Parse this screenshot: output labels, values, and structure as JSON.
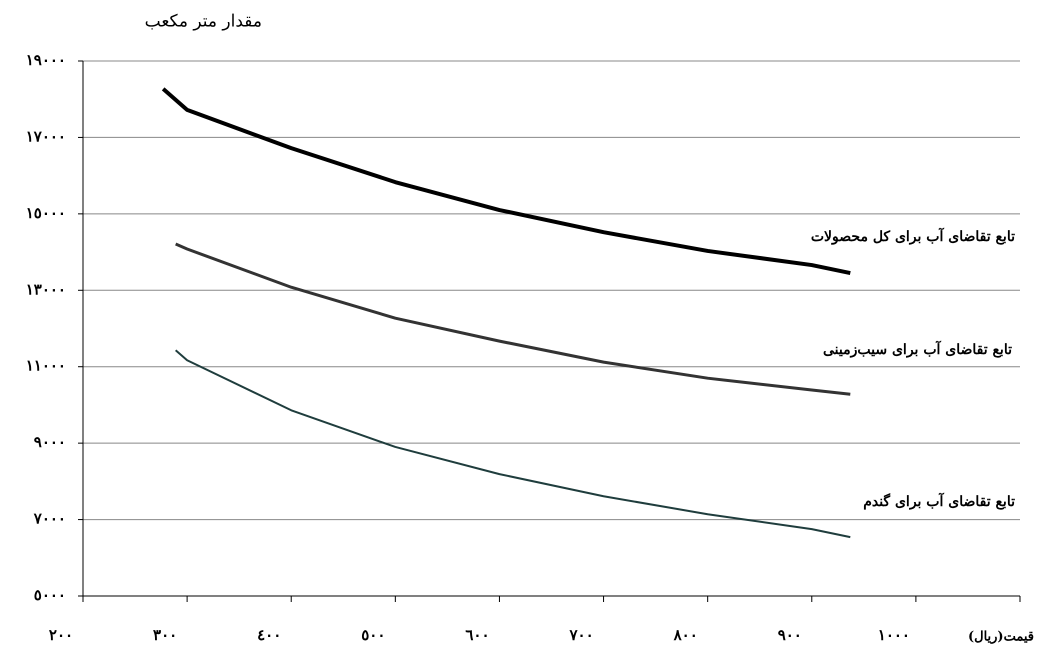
{
  "chart_data": {
    "type": "line",
    "ylabel": "مقدار متر مکعب",
    "xlabel": "قیمت(ریال)",
    "xlim": [
      200,
      1100
    ],
    "xticks": [
      {
        "value": 200,
        "label": "۲۰۰"
      },
      {
        "value": 300,
        "label": "۳۰۰"
      },
      {
        "value": 400,
        "label": "٤۰۰"
      },
      {
        "value": 500,
        "label": "٥۰۰"
      },
      {
        "value": 600,
        "label": "٦۰۰"
      },
      {
        "value": 700,
        "label": "۷۰۰"
      },
      {
        "value": 800,
        "label": "۸۰۰"
      },
      {
        "value": 900,
        "label": "۹۰۰"
      },
      {
        "value": 1000,
        "label": "۱۰۰۰"
      }
    ],
    "ylim": [
      5000,
      19000
    ],
    "yticks": [
      {
        "value": 5000,
        "label": "٥۰۰۰"
      },
      {
        "value": 7000,
        "label": "۷۰۰۰"
      },
      {
        "value": 9000,
        "label": "۹۰۰۰"
      },
      {
        "value": 11000,
        "label": "۱۱۰۰۰"
      },
      {
        "value": 13000,
        "label": "۱۳۰۰۰"
      },
      {
        "value": 15000,
        "label": "۱٥۰۰۰"
      },
      {
        "value": 17000,
        "label": "۱۷۰۰۰"
      },
      {
        "value": 19000,
        "label": "۱۹۰۰۰"
      }
    ],
    "grid": true,
    "series": [
      {
        "name": "تابع تقاضای آب برای کل محصولات",
        "color": "#000000",
        "width": 4,
        "x": [
          277,
          300,
          400,
          500,
          600,
          700,
          800,
          900,
          937
        ],
        "values": [
          18270,
          17720,
          16720,
          15830,
          15100,
          14520,
          14030,
          13660,
          13450
        ]
      },
      {
        "name": "تابع تقاضای آب برای سیب‌زمینی",
        "color": "#333333",
        "width": 3,
        "x": [
          289,
          300,
          400,
          500,
          600,
          700,
          800,
          900,
          937
        ],
        "values": [
          14210,
          14080,
          13080,
          12270,
          11670,
          11120,
          10700,
          10390,
          10280
        ]
      },
      {
        "name": "تابع تقاضای آب برای گندم",
        "color": "#1f3d3d",
        "width": 2,
        "x": [
          289,
          300,
          400,
          500,
          600,
          700,
          800,
          900,
          937
        ],
        "values": [
          11430,
          11170,
          9860,
          8900,
          8190,
          7610,
          7140,
          6750,
          6540
        ]
      }
    ]
  }
}
